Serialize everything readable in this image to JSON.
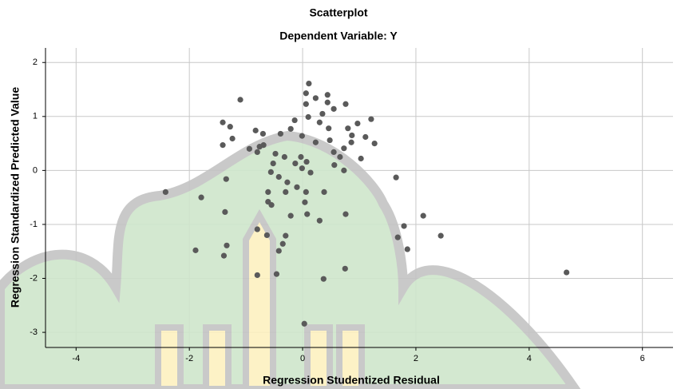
{
  "chart_data": {
    "type": "scatter",
    "title": "Scatterplot",
    "subtitle": "Dependent Variable: Y",
    "x_label": "Regression Studentized Residual",
    "y_label": "Regression Standardized Predicted Value",
    "color": "#5a5a5a",
    "grid": true,
    "xlim": [
      -4.54,
      6.54
    ],
    "xticks": [
      -4,
      -2,
      0,
      2,
      4,
      6
    ],
    "ylim": [
      -3.28,
      2.27
    ],
    "yticks": [
      -3,
      -2,
      -1,
      0,
      1,
      2
    ],
    "x": [
      0.11,
      0.06,
      0.23,
      0.44,
      0.06,
      0.44,
      0.55,
      0.76,
      -1.1,
      -1.41,
      -1.28,
      0.1,
      0.35,
      0.3,
      -0.14,
      1.21,
      0.97,
      0.46,
      0.8,
      -0.83,
      -0.7,
      -0.39,
      -0.21,
      -0.01,
      -1.24,
      -1.41,
      0.48,
      0.23,
      0.87,
      1.11,
      0.73,
      0.86,
      1.27,
      -0.94,
      -0.8,
      -0.69,
      -0.76,
      -0.48,
      -0.32,
      -0.03,
      0.55,
      0.66,
      1.03,
      -0.52,
      -0.13,
      -0.01,
      0.07,
      0.14,
      0.56,
      0.73,
      -0.56,
      -0.42,
      -1.35,
      -0.27,
      -0.1,
      1.65,
      -2.42,
      -1.79,
      -0.61,
      -0.3,
      0.06,
      0.38,
      -0.61,
      -0.55,
      0.04,
      -1.37,
      -0.21,
      0.08,
      0.3,
      0.76,
      2.13,
      1.79,
      -0.8,
      -0.63,
      -0.3,
      1.68,
      2.44,
      1.85,
      -1.34,
      -1.89,
      -1.39,
      -0.35,
      -0.42,
      0.75,
      4.66,
      -0.8,
      -0.46,
      0.37,
      0.03
    ],
    "values": [
      1.61,
      1.43,
      1.34,
      1.4,
      1.23,
      1.26,
      1.14,
      1.23,
      1.31,
      0.89,
      0.81,
      0.99,
      1.05,
      0.89,
      0.93,
      0.95,
      0.87,
      0.78,
      0.78,
      0.74,
      0.68,
      0.68,
      0.77,
      0.64,
      0.59,
      0.47,
      0.56,
      0.52,
      0.65,
      0.62,
      0.41,
      0.52,
      0.5,
      0.4,
      0.34,
      0.47,
      0.44,
      0.31,
      0.25,
      0.25,
      0.34,
      0.25,
      0.22,
      0.13,
      0.13,
      0.04,
      0.16,
      -0.04,
      0.1,
      0.0,
      -0.03,
      -0.12,
      -0.16,
      -0.22,
      -0.31,
      -0.13,
      -0.4,
      -0.5,
      -0.4,
      -0.4,
      -0.4,
      -0.4,
      -0.58,
      -0.64,
      -0.59,
      -0.77,
      -0.84,
      -0.81,
      -0.93,
      -0.81,
      -0.84,
      -1.03,
      -1.09,
      -1.2,
      -1.21,
      -1.24,
      -1.21,
      -1.46,
      -1.39,
      -1.48,
      -1.58,
      -1.36,
      -1.49,
      -1.82,
      -1.89,
      -1.94,
      -1.92,
      -2.01,
      -2.84
    ]
  }
}
